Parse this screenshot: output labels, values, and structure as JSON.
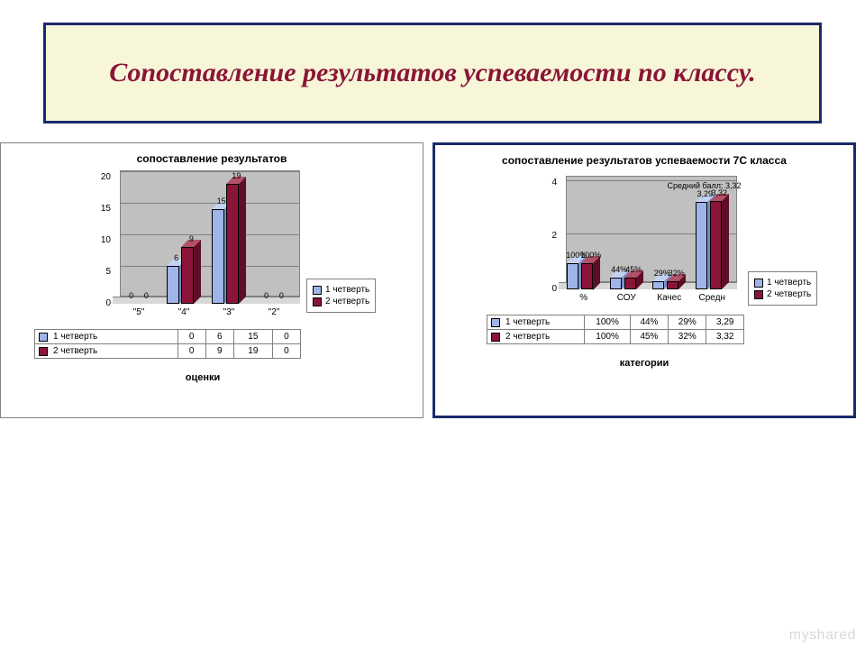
{
  "page": {
    "title": "Сопоставление результатов успеваемости по классу.",
    "title_box": {
      "bg": "#f8f6d8",
      "border": "#1a2a6c",
      "color": "#8a1538",
      "fontsize": 30
    },
    "watermark": "myshared"
  },
  "chart_left": {
    "type": "bar-3d",
    "title": "сопоставление результатов",
    "title_fontsize": 12,
    "categories": [
      "\"5\"",
      "\"4\"",
      "\"3\"",
      "\"2\""
    ],
    "series": [
      {
        "name": "1 четверть",
        "color": "#9fb4e8",
        "side_color": "#7a8ec4",
        "top_color": "#c4d2f2",
        "values": [
          0,
          6,
          15,
          0
        ]
      },
      {
        "name": "2 четверть",
        "color": "#8a1538",
        "side_color": "#5e0e26",
        "top_color": "#b05168",
        "values": [
          0,
          9,
          19,
          0
        ]
      }
    ],
    "y": {
      "min": 0,
      "max": 20,
      "step": 5
    },
    "x_axis_label": "оценки",
    "plot_bg": "#c0c0c0",
    "grid_color": "#808080"
  },
  "chart_right": {
    "type": "bar-3d",
    "title": "сопоставление результатов успеваемости 7С класса",
    "title_fontsize": 12,
    "categories": [
      "%",
      "СОУ",
      "Качес",
      "Средн"
    ],
    "series": [
      {
        "name": "1 четверть",
        "color": "#9fb4e8",
        "side_color": "#7a8ec4",
        "top_color": "#c4d2f2",
        "display": [
          "100%",
          "44%",
          "29%",
          "3,29"
        ],
        "values_num": [
          1.0,
          0.44,
          0.29,
          3.29
        ]
      },
      {
        "name": "2 четверть",
        "color": "#8a1538",
        "side_color": "#5e0e26",
        "top_color": "#b05168",
        "display": [
          "100%",
          "45%",
          "32%",
          "3,32"
        ],
        "values_num": [
          1.0,
          0.45,
          0.32,
          3.32
        ]
      }
    ],
    "y": {
      "min": 0,
      "max": 4,
      "step": 2
    },
    "x_axis_label": "категории",
    "plot_bg": "#c0c0c0",
    "grid_color": "#808080",
    "callout_label": "Средний балл; 3,32"
  }
}
